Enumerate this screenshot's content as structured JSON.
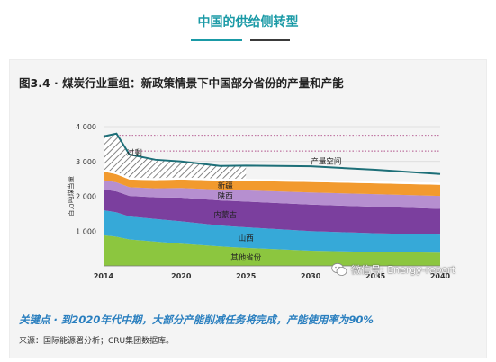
{
  "header": {
    "title": "中国的供给侧转型"
  },
  "figure": {
    "title": "图3.4 · 煤炭行业重组：新政策情景下中国部分省份的产量和产能",
    "key_point": "关键点 · 到2020年代中期，大部分产能削减任务将完成，产能使用率为90%",
    "source": "来源：国际能源署分析；CRU集团数据库。"
  },
  "watermark": {
    "text": "微信号: Energy-report",
    "icon": "wechat-icon"
  },
  "chart_data": {
    "type": "area",
    "ylabel": "百万吨煤当量",
    "ylim": [
      0,
      4000
    ],
    "xlim": [
      2014,
      2040
    ],
    "x_ticks": [
      "2014",
      "2020",
      "2025",
      "2030",
      "2035",
      "2040"
    ],
    "y_ticks": [
      "1 000",
      "2 000",
      "3 000",
      "4 000"
    ],
    "x": [
      2014,
      2015,
      2016,
      2018,
      2020,
      2023,
      2025,
      2030,
      2035,
      2040
    ],
    "series": [
      {
        "name": "其他省份",
        "color": "#8cc63f",
        "values": [
          880,
          840,
          760,
          700,
          640,
          560,
          520,
          440,
          400,
          380
        ]
      },
      {
        "name": "山西",
        "color": "#36a9d8",
        "values": [
          720,
          700,
          660,
          650,
          640,
          600,
          590,
          560,
          540,
          520
        ]
      },
      {
        "name": "内蒙古",
        "color": "#7b3f9e",
        "values": [
          600,
          600,
          590,
          620,
          680,
          720,
          740,
          760,
          760,
          740
        ]
      },
      {
        "name": "陕西",
        "color": "#b68fd0",
        "values": [
          260,
          260,
          250,
          260,
          280,
          310,
          320,
          350,
          360,
          370
        ]
      },
      {
        "name": "新疆",
        "color": "#f29a2e",
        "values": [
          250,
          230,
          220,
          230,
          240,
          260,
          270,
          300,
          310,
          320
        ]
      }
    ],
    "capacity": {
      "name": "产量空间",
      "color": "#1d6f78",
      "values": [
        3720,
        3800,
        3200,
        3050,
        3000,
        2870,
        2880,
        2860,
        2760,
        2640
      ]
    },
    "overcapacity_label": "过剩",
    "reference_lines": [
      3750,
      3300
    ],
    "grid": true
  }
}
